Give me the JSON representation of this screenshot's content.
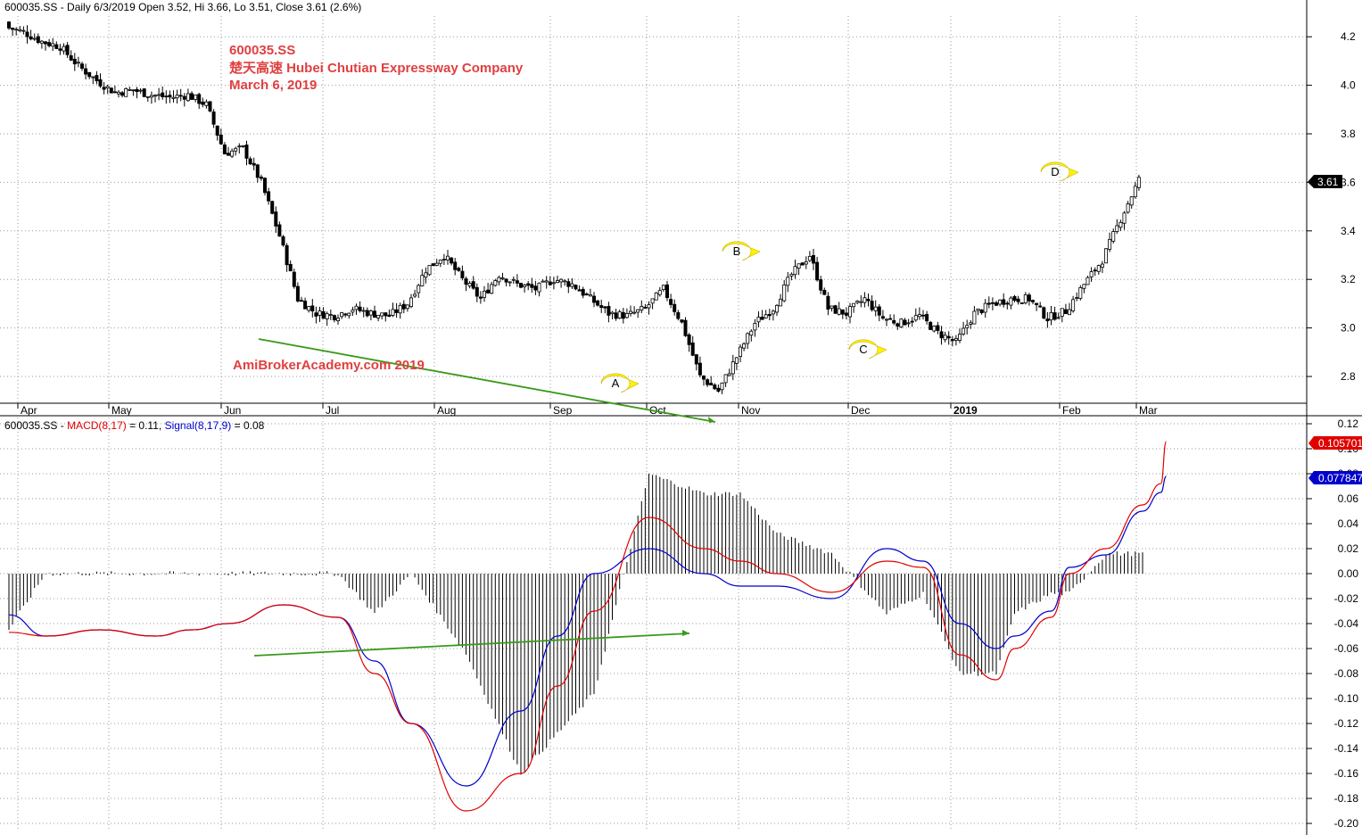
{
  "header": {
    "price_info": "600035.SS - Daily 6/3/2019 Open 3.52, Hi 3.66, Lo 3.51, Close 3.61 (2.6%)",
    "macd_prefix": "600035.SS - ",
    "macd_label": "MACD(8,17)",
    "macd_value": " = 0.11, ",
    "signal_label": "Signal(8,17,9)",
    "signal_value": " = 0.08"
  },
  "annotations": {
    "ticker": "600035.SS",
    "company": "楚天高速  Hubei Chutian Expressway Company",
    "date": "March 6, 2019",
    "watermark": "AmiBrokerAcademy.com   2019",
    "bubbles": [
      "A",
      "B",
      "C",
      "D"
    ]
  },
  "price_tag": "3.61",
  "macd_tag": "0.105701",
  "signal_tag": "0.077847",
  "colors": {
    "up": "#ffffff",
    "down": "#000000",
    "macd": "#e00000",
    "signal": "#0000cc",
    "annotation": "#e04040",
    "trendline": "#3a9a1a",
    "bubble": "#fff200"
  },
  "chart_data": [
    {
      "type": "candlestick",
      "x_ticks": [
        "Apr",
        "May",
        "Jun",
        "Jul",
        "Aug",
        "Sep",
        "Oct",
        "Nov",
        "Dec",
        "2019",
        "Feb",
        "Mar"
      ],
      "y_ticks": [
        2.8,
        3.0,
        3.2,
        3.4,
        3.6,
        3.8,
        4.0,
        4.2
      ],
      "ylim": [
        2.69,
        4.35
      ],
      "grid": true,
      "weekly_closes": [
        4.24,
        4.22,
        4.18,
        4.16,
        4.08,
        4.02,
        3.97,
        3.98,
        3.96,
        3.95,
        3.96,
        3.92,
        3.72,
        3.74,
        3.6,
        3.38,
        3.12,
        3.06,
        3.05,
        3.08,
        3.06,
        3.05,
        3.1,
        3.24,
        3.3,
        3.2,
        3.12,
        3.22,
        3.18,
        3.16,
        3.2,
        3.18,
        3.12,
        3.06,
        3.05,
        3.08,
        3.16,
        3.02,
        2.8,
        2.74,
        2.88,
        3.02,
        3.08,
        3.22,
        3.3,
        3.08,
        3.06,
        3.12,
        3.04,
        3.02,
        3.05,
        2.98,
        2.94,
        3.06,
        3.1,
        3.12,
        3.12,
        3.04,
        3.07,
        3.18,
        3.28,
        3.45,
        3.61
      ]
    },
    {
      "type": "line",
      "title": "MACD(8,17), Signal(8,17,9)",
      "y_ticks": [
        -0.2,
        -0.18,
        -0.16,
        -0.14,
        -0.12,
        -0.1,
        -0.08,
        -0.06,
        -0.04,
        -0.02,
        0.0,
        0.02,
        0.04,
        0.06,
        0.08,
        0.1,
        0.12
      ],
      "ylim": [
        -0.2,
        0.12
      ],
      "series": [
        {
          "name": "MACD(8,17)",
          "x": [
            0,
            2,
            5,
            8,
            10,
            12,
            15,
            18,
            20,
            22,
            25,
            28,
            30,
            32,
            35,
            38,
            40,
            42,
            45,
            48,
            50,
            52,
            54,
            55,
            57,
            58,
            60,
            62,
            63
          ],
          "values": [
            -0.047,
            -0.05,
            -0.045,
            -0.05,
            -0.045,
            -0.04,
            -0.025,
            -0.035,
            -0.08,
            -0.12,
            -0.19,
            -0.16,
            -0.09,
            -0.03,
            0.045,
            0.02,
            0.01,
            0.0,
            -0.015,
            0.01,
            0.005,
            -0.065,
            -0.085,
            -0.06,
            -0.035,
            0.0,
            0.02,
            0.055,
            0.072
          ],
          "end_value": 0.105701
        },
        {
          "name": "Signal(8,17,9)",
          "x": [
            0,
            2,
            5,
            8,
            10,
            12,
            15,
            18,
            20,
            22,
            25,
            28,
            30,
            32,
            35,
            38,
            40,
            42,
            45,
            48,
            50,
            52,
            54,
            55,
            57,
            58,
            60,
            62,
            63
          ],
          "values": [
            -0.033,
            -0.05,
            -0.045,
            -0.05,
            -0.045,
            -0.04,
            -0.025,
            -0.035,
            -0.07,
            -0.12,
            -0.17,
            -0.11,
            -0.05,
            0.0,
            0.02,
            0.0,
            -0.01,
            -0.01,
            -0.02,
            0.02,
            0.01,
            -0.04,
            -0.06,
            -0.05,
            -0.03,
            0.005,
            0.015,
            0.05,
            0.065
          ],
          "end_value": 0.077847
        }
      ]
    }
  ]
}
